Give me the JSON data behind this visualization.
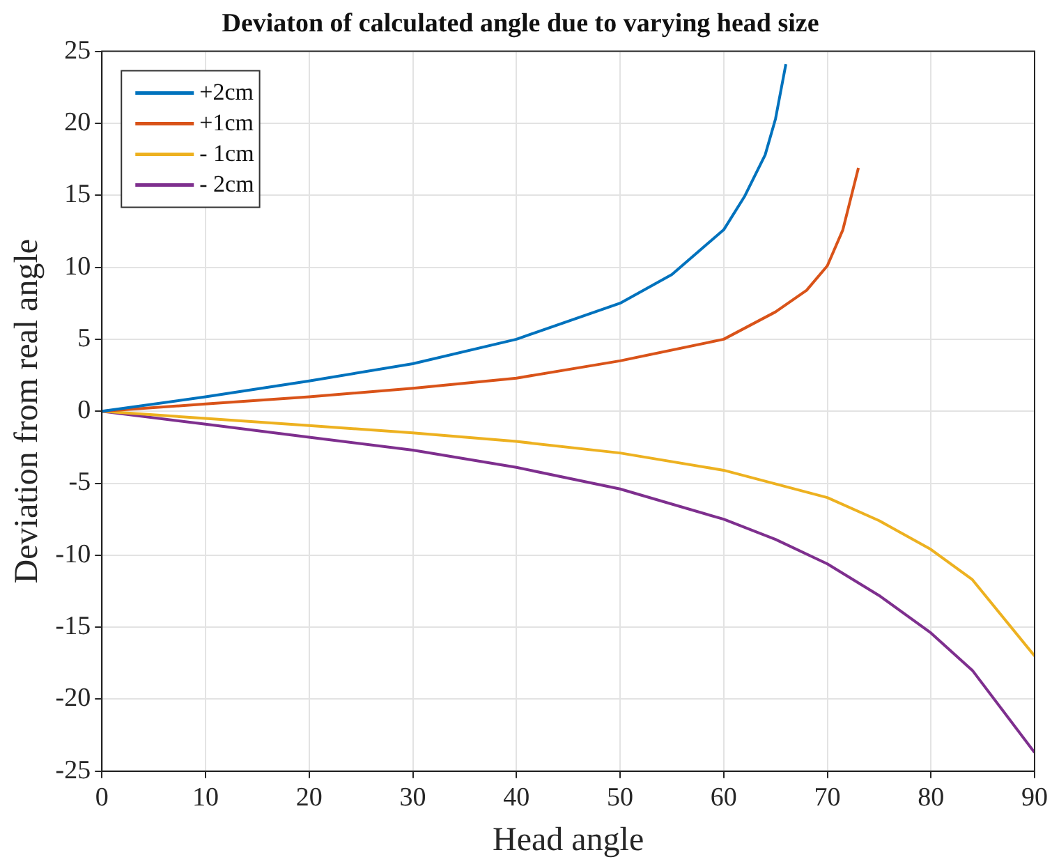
{
  "chart_data": {
    "type": "line",
    "title": "Deviaton of calculated angle due to varying head size",
    "xlabel": "Head angle",
    "ylabel": "Deviation from real angle",
    "xlim": [
      0,
      90
    ],
    "xticks": [
      0,
      10,
      20,
      30,
      40,
      50,
      60,
      70,
      80,
      90
    ],
    "ylim": [
      -25,
      25
    ],
    "yticks": [
      -25,
      -20,
      -15,
      -10,
      -5,
      0,
      5,
      10,
      15,
      20,
      25
    ],
    "grid": true,
    "legend": "top left",
    "marker": "none",
    "line_style": "solid",
    "series": [
      {
        "name": "+2cm",
        "color": "#0072bd",
        "x": [
          0,
          10,
          20,
          30,
          40,
          50,
          55,
          60,
          62,
          64,
          65,
          66
        ],
        "values": [
          0,
          1.0,
          2.1,
          3.3,
          5.0,
          7.5,
          9.5,
          12.6,
          14.9,
          17.8,
          20.3,
          24.1
        ]
      },
      {
        "name": "+1cm",
        "color": "#d95319",
        "x": [
          0,
          10,
          20,
          30,
          40,
          50,
          60,
          65,
          68,
          70,
          71.5,
          73
        ],
        "values": [
          0,
          0.5,
          1.0,
          1.6,
          2.3,
          3.5,
          5.0,
          6.9,
          8.4,
          10.1,
          12.6,
          16.9
        ]
      },
      {
        "name": "- 1cm",
        "color": "#edb120",
        "x": [
          0,
          10,
          20,
          30,
          40,
          50,
          60,
          70,
          75,
          80,
          84,
          90
        ],
        "values": [
          0,
          -0.5,
          -1.0,
          -1.5,
          -2.1,
          -2.9,
          -4.1,
          -6.0,
          -7.6,
          -9.6,
          -11.7,
          -17.0
        ]
      },
      {
        "name": "- 2cm",
        "color": "#7e2f8e",
        "x": [
          0,
          10,
          20,
          30,
          40,
          50,
          60,
          65,
          70,
          75,
          80,
          84,
          90
        ],
        "values": [
          0,
          -0.9,
          -1.8,
          -2.7,
          -3.9,
          -5.4,
          -7.5,
          -8.9,
          -10.6,
          -12.8,
          -15.4,
          -18.0,
          -23.7
        ]
      }
    ]
  }
}
